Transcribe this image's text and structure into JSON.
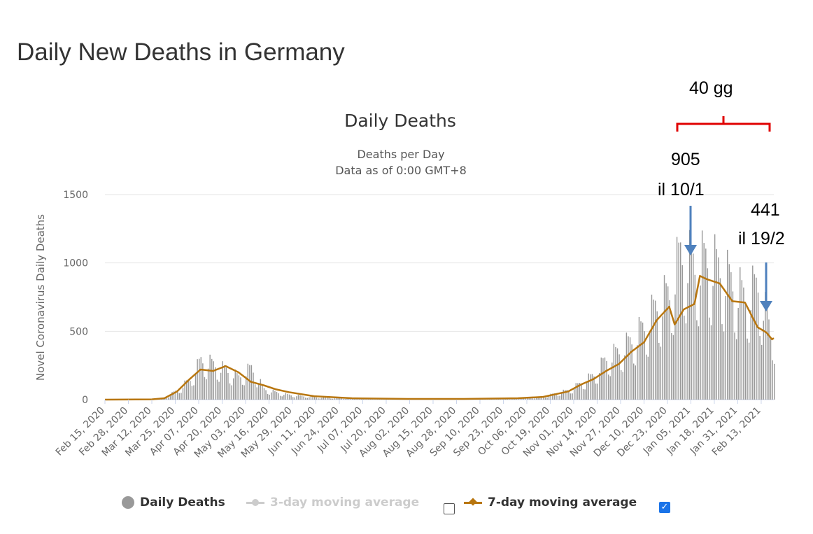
{
  "page_title": "Daily New Deaths in Germany",
  "annotations": {
    "span_label": "40 gg",
    "peak_value": "905",
    "peak_date": "il  10/1",
    "end_value": "441",
    "end_date": "il 19/2",
    "bracket_color": "#e00000",
    "arrow_color": "#4f81bd"
  },
  "legend": {
    "daily_label": "Daily Deaths",
    "ma3_label": "3-day moving average",
    "ma7_label": "7-day moving average",
    "ma3_checked": false,
    "ma7_checked": true,
    "checkmark": "✓"
  },
  "chart_data": {
    "type": "bar",
    "title": "Daily Deaths",
    "subtitle_line1": "Deaths per Day",
    "subtitle_line2": "Data as of 0:00 GMT+8",
    "ylabel": "Novel Coronavirus Daily Deaths",
    "xlabel": "",
    "ylim": [
      0,
      1500
    ],
    "yticks": [
      0,
      500,
      1000,
      1500
    ],
    "grid": true,
    "legend_position": "bottom",
    "x_start": "2020-02-15",
    "x_end": "2021-02-20",
    "x_tick_labels": [
      "Feb 15, 2020",
      "Feb 28, 2020",
      "Mar 12, 2020",
      "Mar 25, 2020",
      "Apr 07, 2020",
      "Apr 20, 2020",
      "May 03, 2020",
      "May 16, 2020",
      "May 29, 2020",
      "Jun 11, 2020",
      "Jun 24, 2020",
      "Jul 07, 2020",
      "Jul 20, 2020",
      "Aug 02, 2020",
      "Aug 15, 2020",
      "Aug 28, 2020",
      "Sep 10, 2020",
      "Sep 23, 2020",
      "Oct 06, 2020",
      "Oct 19, 2020",
      "Nov 01, 2020",
      "Nov 14, 2020",
      "Nov 27, 2020",
      "Dec 10, 2020",
      "Dec 23, 2020",
      "Jan 05, 2021",
      "Jan 18, 2021",
      "Jan 31, 2021",
      "Feb 13, 2021"
    ],
    "bar_color": "#999999",
    "ma7_color": "#b8760f",
    "series": [
      {
        "name": "Daily Deaths",
        "type": "bar",
        "weekly_points": [
          [
            "2020-02-15",
            0
          ],
          [
            "2020-03-12",
            3
          ],
          [
            "2020-03-19",
            15
          ],
          [
            "2020-03-26",
            80
          ],
          [
            "2020-04-02",
            170
          ],
          [
            "2020-04-08",
            333
          ],
          [
            "2020-04-15",
            300
          ],
          [
            "2020-04-22",
            250
          ],
          [
            "2020-04-29",
            190
          ],
          [
            "2020-05-06",
            270
          ],
          [
            "2020-05-13",
            90
          ],
          [
            "2020-05-20",
            60
          ],
          [
            "2020-05-27",
            40
          ],
          [
            "2020-06-10",
            20
          ],
          [
            "2020-07-01",
            8
          ],
          [
            "2020-08-01",
            7
          ],
          [
            "2020-09-01",
            6
          ],
          [
            "2020-10-01",
            10
          ],
          [
            "2020-10-15",
            25
          ],
          [
            "2020-10-29",
            80
          ],
          [
            "2020-11-05",
            140
          ],
          [
            "2020-11-12",
            210
          ],
          [
            "2020-11-19",
            350
          ],
          [
            "2020-11-26",
            410
          ],
          [
            "2020-12-03",
            500
          ],
          [
            "2020-12-10",
            620
          ],
          [
            "2020-12-17",
            800
          ],
          [
            "2020-12-24",
            900
          ],
          [
            "2020-12-30",
            1230
          ],
          [
            "2021-01-07",
            1130
          ],
          [
            "2021-01-14",
            1190
          ],
          [
            "2021-01-21",
            1100
          ],
          [
            "2021-01-28",
            980
          ],
          [
            "2021-02-04",
            860
          ],
          [
            "2021-02-11",
            970
          ],
          [
            "2021-02-18",
            570
          ],
          [
            "2021-02-20",
            560
          ]
        ]
      },
      {
        "name": "7-day moving average",
        "type": "line",
        "points": [
          [
            "2020-02-15",
            0
          ],
          [
            "2020-03-12",
            2
          ],
          [
            "2020-03-19",
            10
          ],
          [
            "2020-03-26",
            60
          ],
          [
            "2020-04-02",
            150
          ],
          [
            "2020-04-08",
            220
          ],
          [
            "2020-04-15",
            210
          ],
          [
            "2020-04-22",
            245
          ],
          [
            "2020-04-29",
            200
          ],
          [
            "2020-05-06",
            130
          ],
          [
            "2020-05-13",
            105
          ],
          [
            "2020-05-20",
            75
          ],
          [
            "2020-05-27",
            55
          ],
          [
            "2020-06-10",
            25
          ],
          [
            "2020-07-01",
            10
          ],
          [
            "2020-08-01",
            5
          ],
          [
            "2020-09-01",
            5
          ],
          [
            "2020-10-01",
            10
          ],
          [
            "2020-10-15",
            20
          ],
          [
            "2020-10-29",
            60
          ],
          [
            "2020-11-05",
            110
          ],
          [
            "2020-11-12",
            150
          ],
          [
            "2020-11-19",
            210
          ],
          [
            "2020-11-26",
            260
          ],
          [
            "2020-12-03",
            350
          ],
          [
            "2020-12-10",
            420
          ],
          [
            "2020-12-17",
            580
          ],
          [
            "2020-12-24",
            680
          ],
          [
            "2020-12-27",
            550
          ],
          [
            "2021-01-01",
            660
          ],
          [
            "2021-01-07",
            700
          ],
          [
            "2021-01-10",
            905
          ],
          [
            "2021-01-14",
            880
          ],
          [
            "2021-01-21",
            850
          ],
          [
            "2021-01-28",
            720
          ],
          [
            "2021-02-04",
            710
          ],
          [
            "2021-02-11",
            530
          ],
          [
            "2021-02-16",
            490
          ],
          [
            "2021-02-19",
            441
          ],
          [
            "2021-02-20",
            450
          ]
        ]
      }
    ]
  }
}
